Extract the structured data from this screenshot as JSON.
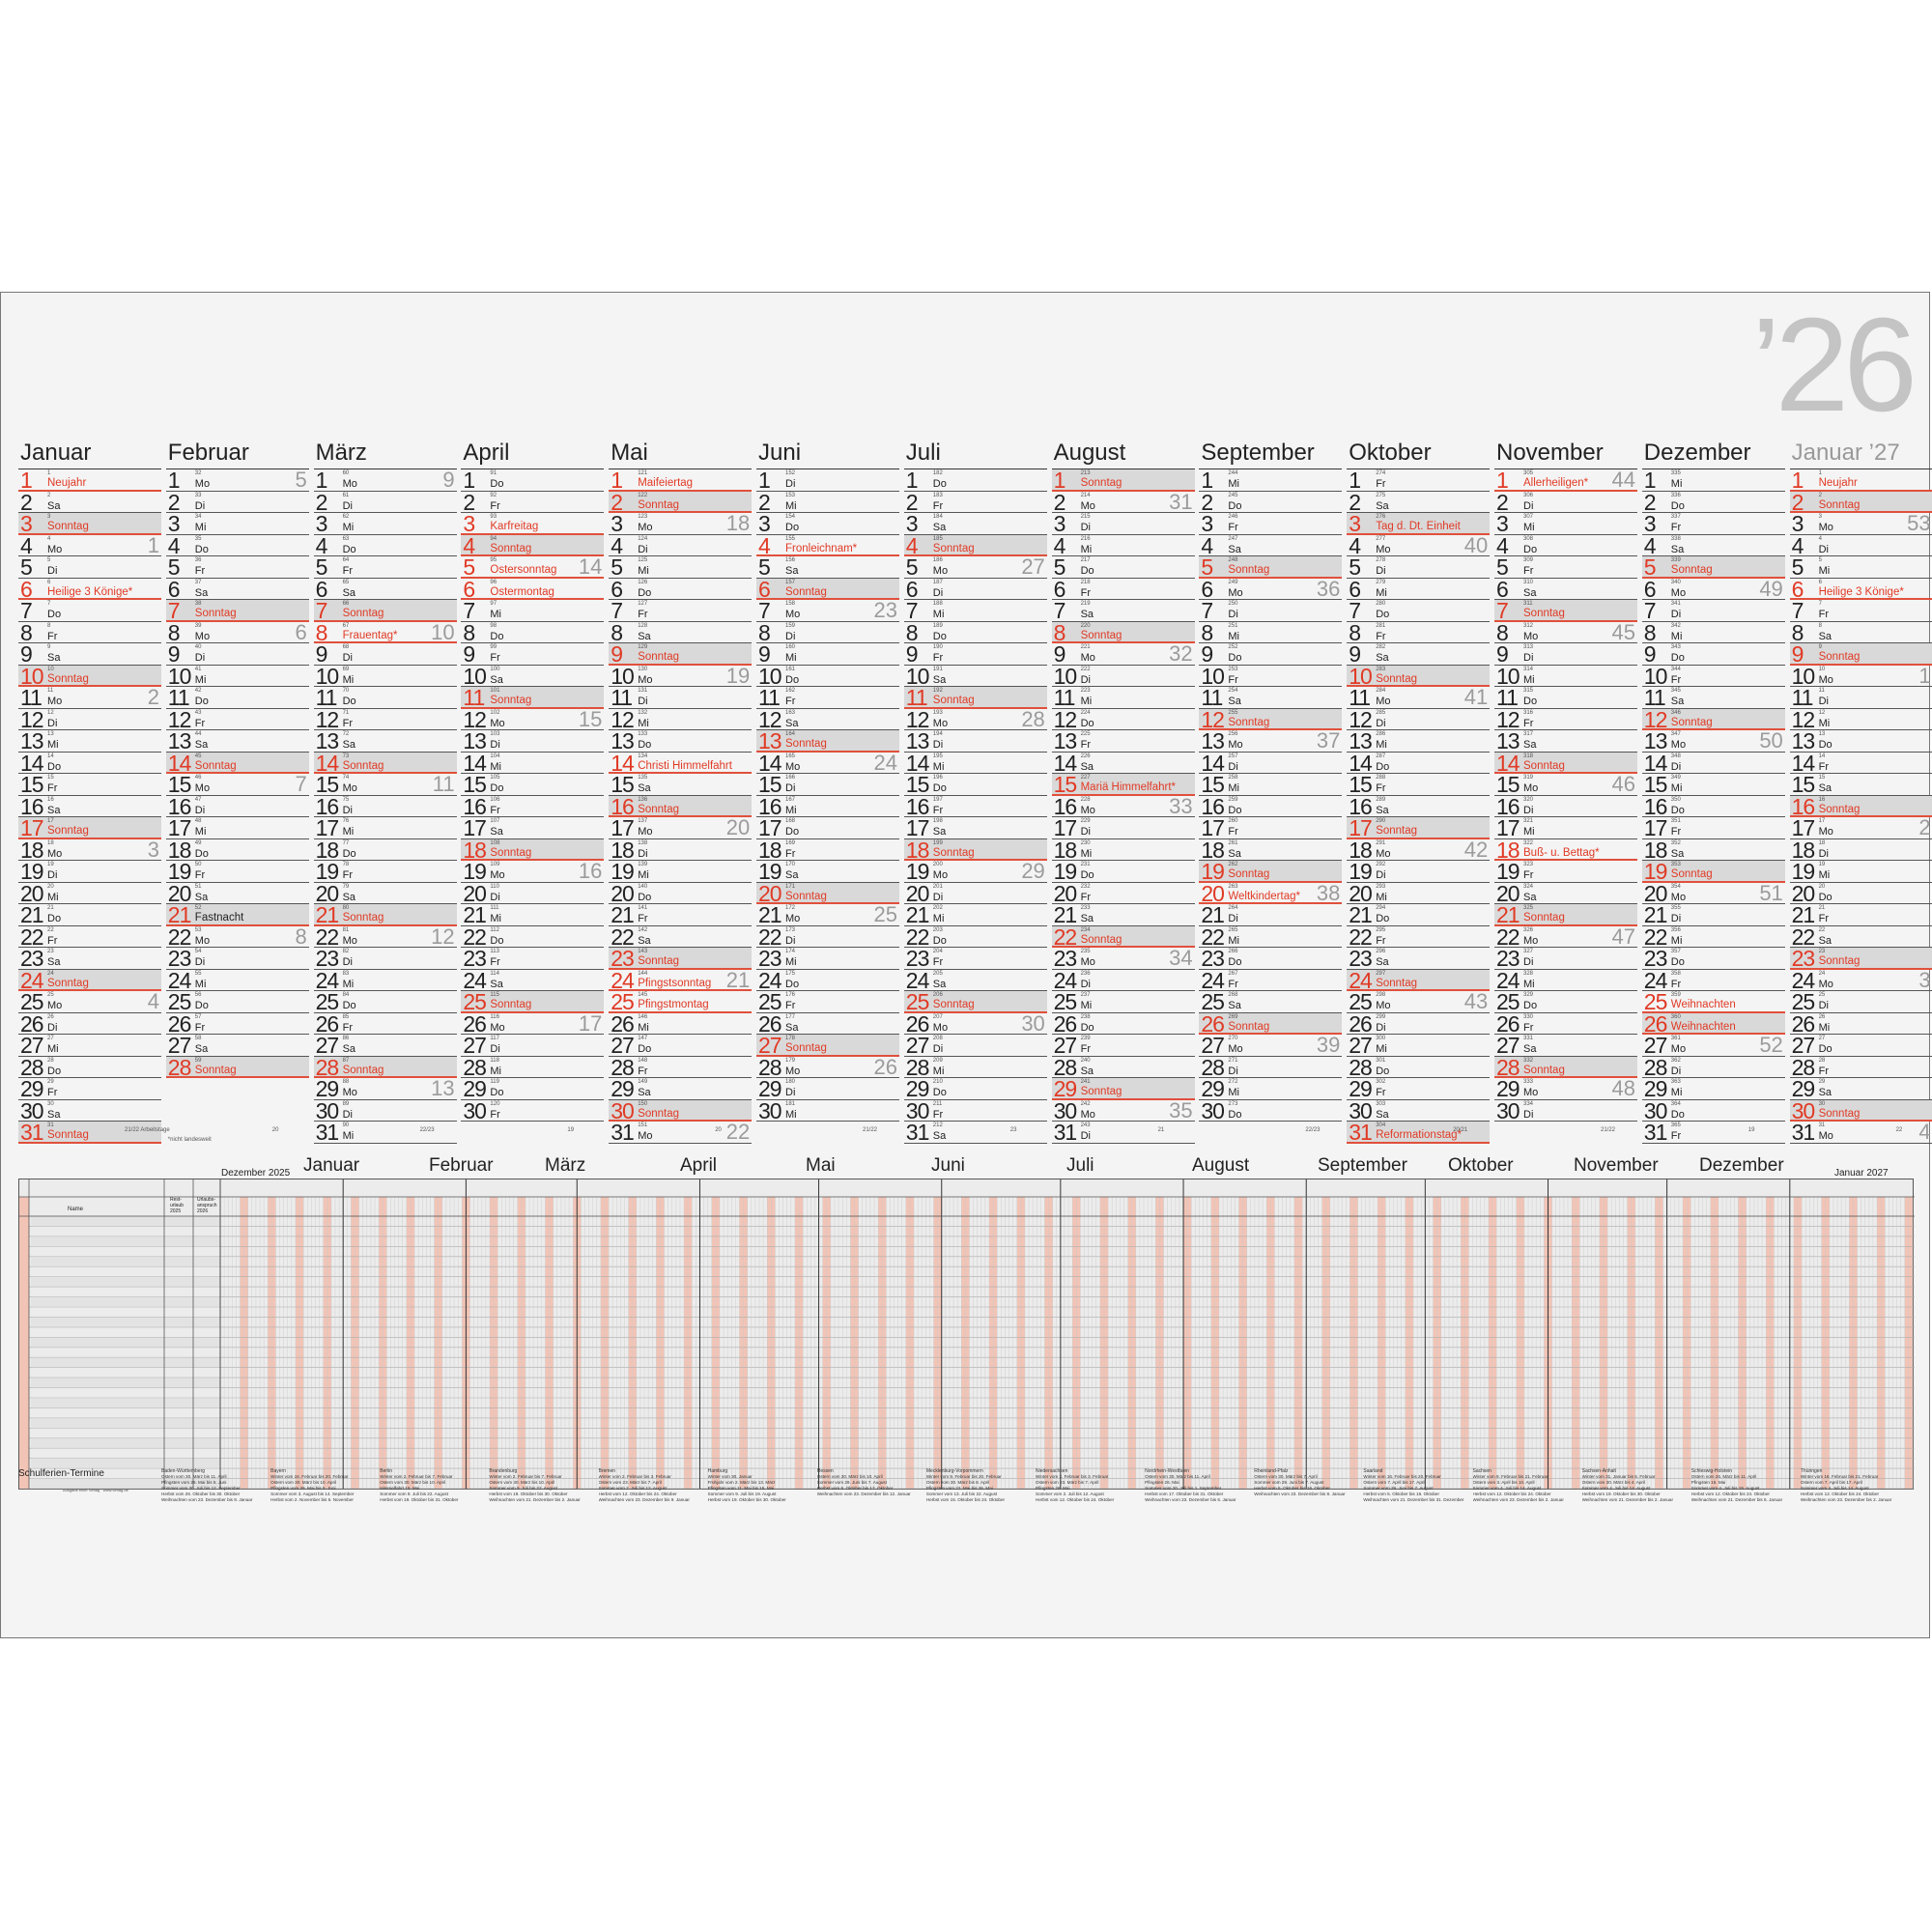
{
  "year_label": "’26",
  "months": [
    {
      "name": "Januar",
      "start": 4,
      "days": 31,
      "next": false,
      "footer": "21/22  Arbeitstage"
    },
    {
      "name": "Februar",
      "start": 0,
      "days": 28,
      "next": false,
      "footer": "20"
    },
    {
      "name": "März",
      "start": 0,
      "days": 31,
      "next": false,
      "footer": "22/23"
    },
    {
      "name": "April",
      "start": 3,
      "days": 30,
      "next": false,
      "footer": "19"
    },
    {
      "name": "Mai",
      "start": 5,
      "days": 31,
      "next": false,
      "footer": "20"
    },
    {
      "name": "Juni",
      "start": 1,
      "days": 30,
      "next": false,
      "footer": "21/22"
    },
    {
      "name": "Juli",
      "start": 3,
      "days": 31,
      "next": false,
      "footer": "23"
    },
    {
      "name": "August",
      "start": 6,
      "days": 31,
      "next": false,
      "footer": "21"
    },
    {
      "name": "September",
      "start": 2,
      "days": 30,
      "next": false,
      "footer": "22/23"
    },
    {
      "name": "Oktober",
      "start": 4,
      "days": 31,
      "next": false,
      "footer": "20/21"
    },
    {
      "name": "November",
      "start": 0,
      "days": 30,
      "next": false,
      "footer": "21/22"
    },
    {
      "name": "Dezember",
      "start": 2,
      "days": 31,
      "next": false,
      "footer": "19"
    },
    {
      "name": "Januar ’27",
      "start": 5,
      "days": 31,
      "next": true,
      "footer": "22"
    }
  ],
  "weekday_abbr": [
    "Mo",
    "Di",
    "Mi",
    "Do",
    "Fr",
    "Sa",
    "So"
  ],
  "sunday_label": "Sonntag",
  "holidays": {
    "0-1": "Neujahr",
    "0-6": "Heilige 3 Könige*",
    "1-21": "Fastnacht",
    "2-8": "Frauentag*",
    "3-3": "Karfreitag",
    "3-5": "Ostersonntag",
    "3-6": "Ostermontag",
    "4-1": "Maifeiertag",
    "4-14": "Christi Himmelfahrt",
    "4-24": "Pfingstsonntag",
    "4-25": "Pfingstmontag",
    "5-4": "Fronleichnam*",
    "7-15": "Mariä Himmelfahrt*",
    "8-20": "Weltkindertag*",
    "9-3": "Tag d. Dt. Einheit",
    "9-31": "Reformationstag*",
    "10-1": "Allerheiligen*",
    "10-18": "Buß- u. Bettag*",
    "11-25": "Weihnachten",
    "11-26": "Weihnachten",
    "12-1": "Neujahr",
    "12-6": "Heilige 3 Könige*"
  },
  "black_labels": [
    "1-21"
  ],
  "footnote": "*nicht landesweit",
  "planner": {
    "months": [
      "Dezember 2025",
      "Januar",
      "Februar",
      "März",
      "April",
      "Mai",
      "Juni",
      "Juli",
      "August",
      "September",
      "Oktober",
      "November",
      "Dezember",
      "Januar 2027"
    ],
    "name_label": "Name",
    "rest_label": "Rest-urlaub 2025",
    "urlaub_label": "Urlaubs-anspruch 2026",
    "schulferien_label": "Schulferien-Termine",
    "imprint": "Ausgabe einer Verlag · www.verlag.de",
    "states": [
      {
        "name": "Baden-Württemberg",
        "lines": [
          "Ostern vom 30. März bis 11. April",
          "Pfingsten vom 26. Mai bis 5. Juni",
          "Sommer vom 30. Juli bis 12. September",
          "Herbst vom 26. Oktober bis 30. Oktober",
          "Weihnachten vom 23. Dezember bis 9. Januar"
        ]
      },
      {
        "name": "Bayern",
        "lines": [
          "Winter vom 16. Februar bis 20. Februar",
          "Ostern vom 30. März bis 10. April",
          "Pfingsten vom 26. Mai bis 5. Juni",
          "Sommer vom 3. August bis 14. September",
          "Herbst vom 2. November bis 6. November"
        ]
      },
      {
        "name": "Berlin",
        "lines": [
          "Winter vom 2. Februar bis 7. Februar",
          "Ostern vom 30. März bis 10. April",
          "Himmelfahrt 15. Mai",
          "Sommer vom 9. Juli bis 22. August",
          "Herbst vom 19. Oktober bis 31. Oktober"
        ]
      },
      {
        "name": "Brandenburg",
        "lines": [
          "Winter vom 2. Februar bis 7. Februar",
          "Ostern vom 30. März bis 10. April",
          "Sommer vom 9. Juli bis 22. August",
          "Herbst vom 19. Oktober bis 30. Oktober",
          "Weihnachten vom 21. Dezember bis 2. Januar"
        ]
      },
      {
        "name": "Bremen",
        "lines": [
          "Winter vom 2. Februar bis 3. Februar",
          "Ostern vom 23. März bis 7. April",
          "Sommer vom 2. Juli bis 12. August",
          "Herbst vom 12. Oktober bis 24. Oktober",
          "Weihnachten vom 23. Dezember bis 9. Januar"
        ]
      },
      {
        "name": "Hamburg",
        "lines": [
          "Winter vom 30. Januar",
          "Frühjahr vom 2. März bis 13. März",
          "Pfingsten vom 11. Mai bis 15. Mai",
          "Sommer vom 9. Juli bis 19. August",
          "Herbst vom 19. Oktober bis 30. Oktober"
        ]
      },
      {
        "name": "Hessen",
        "lines": [
          "Ostern vom 30. März bis 10. April",
          "Sommer vom 29. Juni bis 7. August",
          "Herbst vom 5. Oktober bis 17. Oktober",
          "Weihnachten vom 23. Dezember bis 12. Januar"
        ]
      },
      {
        "name": "Mecklenburg-Vorpommern",
        "lines": [
          "Winter vom 9. Februar bis 20. Februar",
          "Ostern vom 30. März bis 8. April",
          "Pfingsten vom 22. Mai bis 26. Mai",
          "Sommer vom 13. Juli bis 22. August",
          "Herbst vom 15. Oktober bis 24. Oktober"
        ]
      },
      {
        "name": "Niedersachsen",
        "lines": [
          "Winter vom 2. Februar bis 3. Februar",
          "Ostern vom 23. März bis 7. April",
          "Pfingsten 26. Mai",
          "Sommer vom 2. Juli bis 12. August",
          "Herbst vom 12. Oktober bis 24. Oktober"
        ]
      },
      {
        "name": "Nordrhein-Westfalen",
        "lines": [
          "Ostern vom 30. März bis 11. April",
          "Pfingsten 26. Mai",
          "Sommer vom 20. Juli bis 1. September",
          "Herbst vom 17. Oktober bis 31. Oktober",
          "Weihnachten vom 23. Dezember bis 6. Januar"
        ]
      },
      {
        "name": "Rheinland-Pfalz",
        "lines": [
          "Ostern vom 30. März bis 7. April",
          "Sommer vom 29. Juni bis 7. August",
          "Herbst vom 5. Oktober bis 16. Oktober",
          "Weihnachten vom 23. Dezember bis 8. Januar"
        ]
      },
      {
        "name": "Saarland",
        "lines": [
          "Winter vom 16. Februar bis 20. Februar",
          "Ostern vom 7. April bis 17. April",
          "Sommer vom 29. Juni bis 7. August",
          "Herbst vom 5. Oktober bis 16. Oktober",
          "Weihnachten vom 21. Dezember bis 31. Dezember"
        ]
      },
      {
        "name": "Sachsen",
        "lines": [
          "Winter vom 9. Februar bis 21. Februar",
          "Ostern vom 3. April bis 10. April",
          "Sommer vom 4. Juli bis 14. August",
          "Herbst vom 12. Oktober bis 24. Oktober",
          "Weihnachten vom 23. Dezember bis 2. Januar"
        ]
      },
      {
        "name": "Sachsen-Anhalt",
        "lines": [
          "Winter vom 31. Januar bis 6. Februar",
          "Ostern vom 30. März bis 4. April",
          "Sommer vom 4. Juli bis 14. August",
          "Herbst vom 19. Oktober bis 30. Oktober",
          "Weihnachten vom 21. Dezember bis 2. Januar"
        ]
      },
      {
        "name": "Schleswig-Holstein",
        "lines": [
          "Ostern vom 26. März bis 11. April",
          "Pfingsten 15. Mai",
          "Sommer vom 4. Juli bis 15. August",
          "Herbst vom 12. Oktober bis 24. Oktober",
          "Weihnachten vom 21. Dezember bis 6. Januar"
        ]
      },
      {
        "name": "Thüringen",
        "lines": [
          "Winter vom 16. Februar bis 21. Februar",
          "Ostern vom 7. April bis 17. April",
          "Sommer vom 4. Juli bis 14. August",
          "Herbst vom 12. Oktober bis 24. Oktober",
          "Weihnachten vom 23. Dezember bis 2. Januar"
        ]
      }
    ]
  },
  "colors": {
    "accent": "#e03a25",
    "sunday_bg": "#d9d9d9",
    "week_num": "#9b9b9b",
    "year": "#c4c4c4",
    "planner_weekend": "#f2c4b6"
  }
}
